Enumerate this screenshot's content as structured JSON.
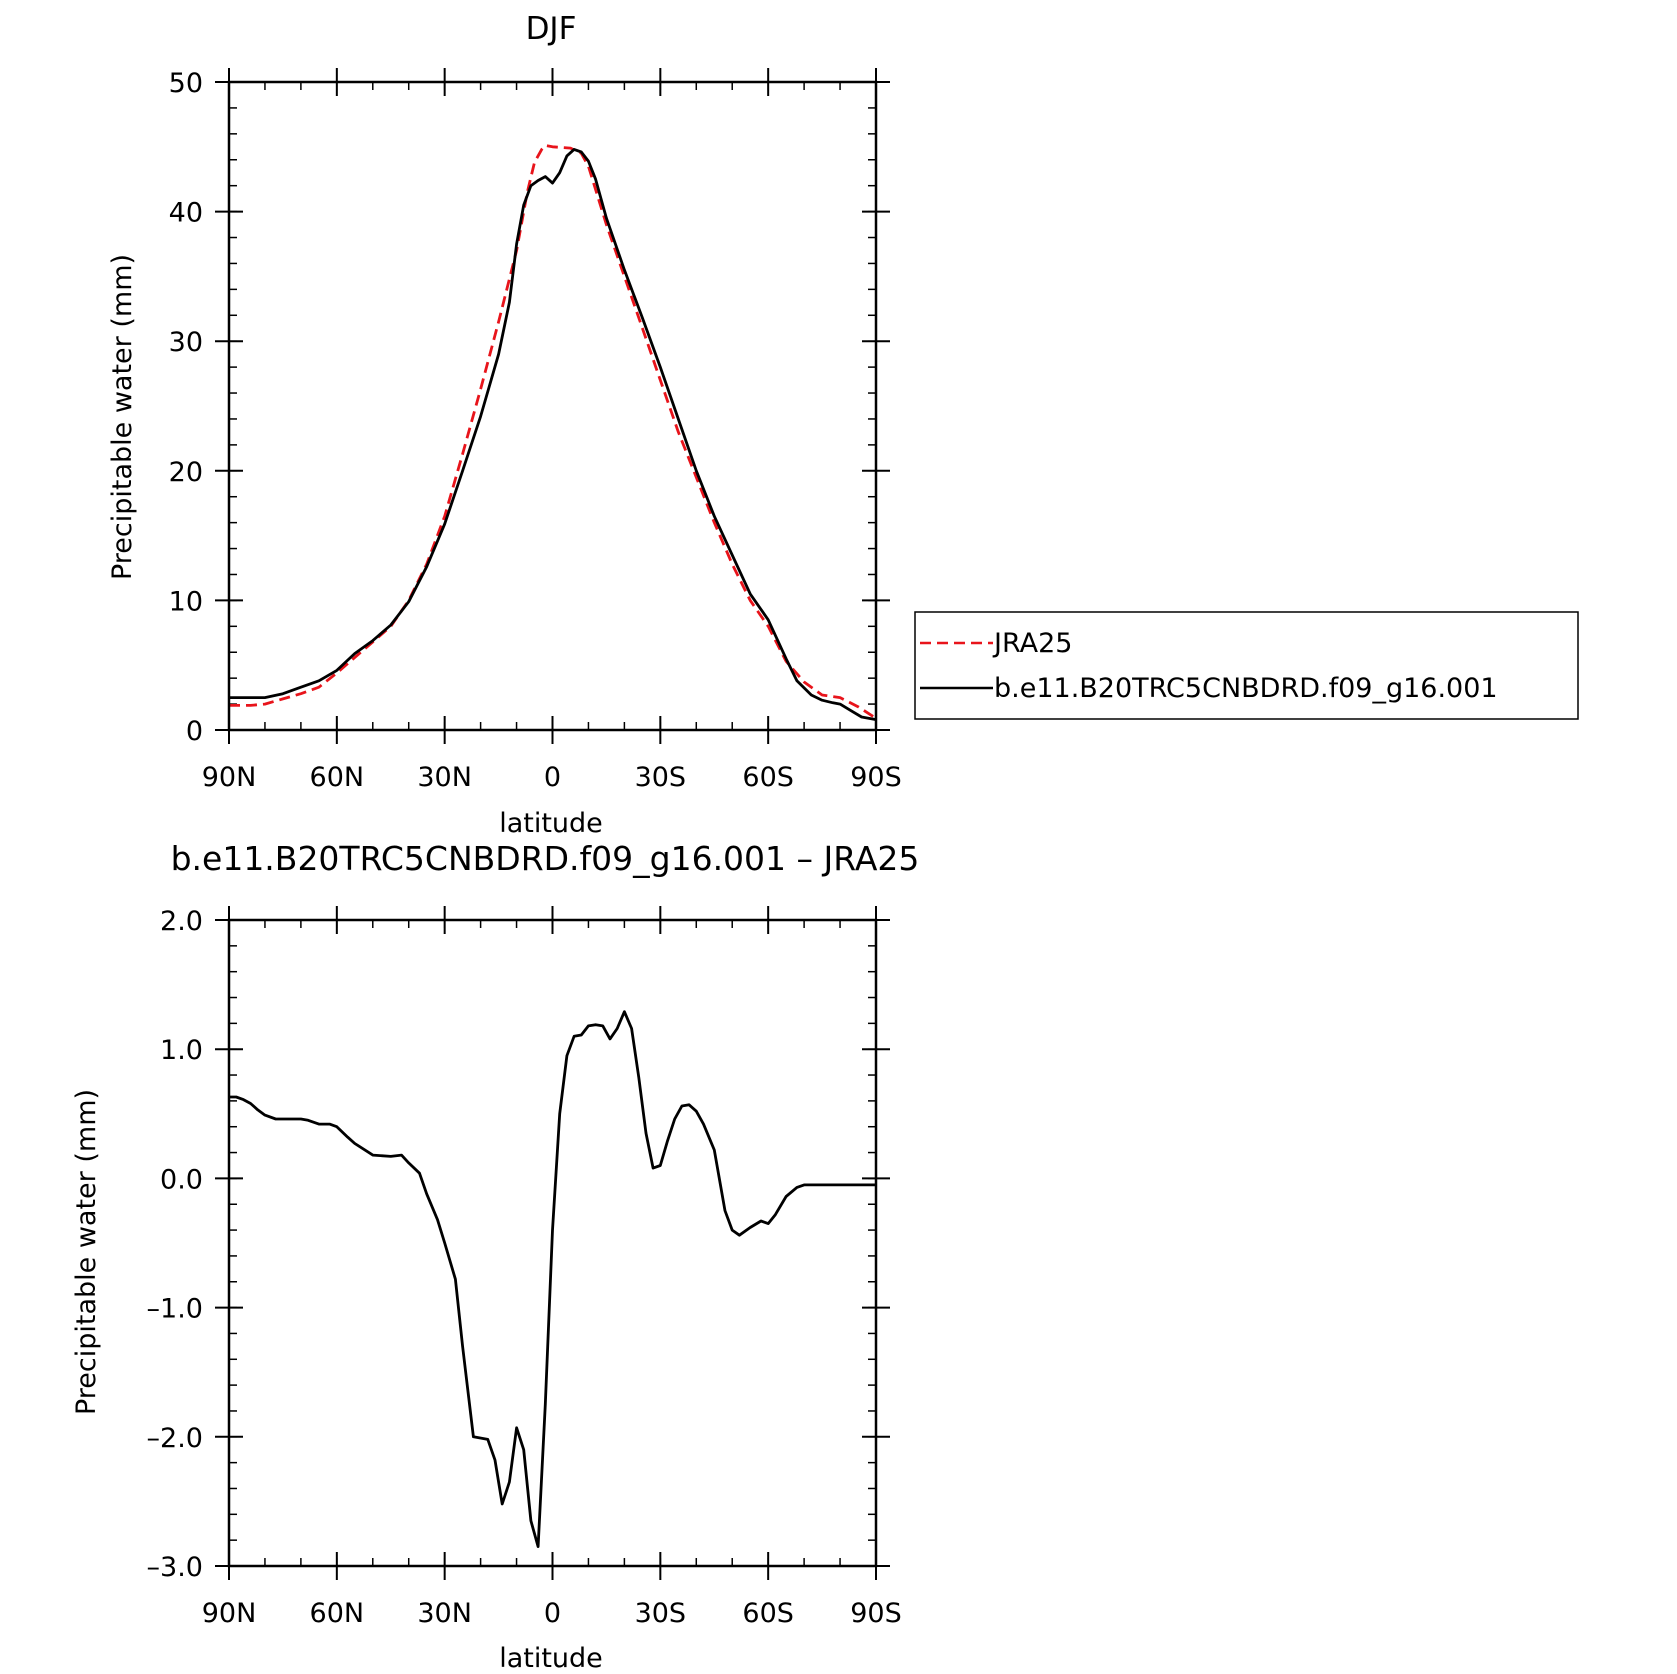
{
  "chart_data": [
    {
      "type": "line",
      "title": "DJF",
      "xlabel": "latitude",
      "ylabel": "Precipitable water (mm)",
      "xlim": [
        90,
        -90
      ],
      "ylim": [
        0,
        50
      ],
      "x_ticks": [
        {
          "value": 90,
          "label": "90N"
        },
        {
          "value": 60,
          "label": "60N"
        },
        {
          "value": 30,
          "label": "30N"
        },
        {
          "value": 0,
          "label": "0"
        },
        {
          "value": -30,
          "label": "30S"
        },
        {
          "value": -60,
          "label": "60S"
        },
        {
          "value": -90,
          "label": "90S"
        }
      ],
      "y_ticks": [
        {
          "value": 0,
          "label": "0"
        },
        {
          "value": 10,
          "label": "10"
        },
        {
          "value": 20,
          "label": "20"
        },
        {
          "value": 30,
          "label": "30"
        },
        {
          "value": 40,
          "label": "40"
        },
        {
          "value": 50,
          "label": "50"
        }
      ],
      "legend": {
        "placement": "right"
      },
      "series": [
        {
          "name": "JRA25",
          "color": "#e8141b",
          "dash": true,
          "x": [
            90,
            84,
            80,
            75,
            70,
            65,
            60,
            55,
            50,
            45,
            40,
            35,
            30,
            25,
            20,
            15,
            10,
            7,
            5,
            3,
            2,
            0,
            -5,
            -8,
            -10,
            -15,
            -20,
            -25,
            -30,
            -35,
            -40,
            -45,
            -50,
            -55,
            -60,
            -65,
            -70,
            -75,
            -80,
            -85,
            -90
          ],
          "values": [
            1.9,
            1.9,
            2.0,
            2.4,
            2.8,
            3.3,
            4.4,
            5.6,
            6.8,
            8.0,
            10.0,
            12.8,
            16.5,
            21.3,
            26.3,
            31.5,
            37.0,
            41.5,
            43.8,
            44.8,
            45.1,
            45.0,
            44.9,
            44.5,
            43.5,
            39.0,
            35.0,
            31.0,
            27.0,
            23.0,
            19.5,
            16.0,
            12.8,
            10.0,
            8.0,
            5.3,
            3.7,
            2.7,
            2.5,
            1.8,
            0.9
          ]
        },
        {
          "name": "b.e11.B20TRC5CNBDRD.f09_g16.001",
          "color": "#000000",
          "dash": false,
          "x": [
            90,
            85,
            80,
            75,
            70,
            65,
            60,
            55,
            50,
            45,
            40,
            35,
            30,
            25,
            20,
            15,
            12,
            10,
            8,
            6,
            4,
            2,
            0,
            -2,
            -4,
            -6,
            -8,
            -10,
            -12,
            -15,
            -20,
            -25,
            -30,
            -35,
            -40,
            -45,
            -50,
            -55,
            -60,
            -65,
            -68,
            -72,
            -75,
            -78,
            -80,
            -83,
            -86,
            -90
          ],
          "values": [
            2.5,
            2.5,
            2.5,
            2.8,
            3.3,
            3.8,
            4.6,
            5.9,
            6.9,
            8.1,
            9.9,
            12.6,
            15.9,
            20.0,
            24.2,
            29.0,
            33.0,
            37.5,
            40.5,
            42.0,
            42.4,
            42.7,
            42.2,
            43.0,
            44.3,
            44.8,
            44.6,
            43.9,
            42.5,
            39.5,
            35.5,
            31.8,
            28.0,
            24.0,
            20.0,
            16.5,
            13.5,
            10.5,
            8.5,
            5.5,
            3.8,
            2.7,
            2.3,
            2.1,
            2.0,
            1.5,
            1.0,
            0.8
          ]
        }
      ]
    },
    {
      "type": "line",
      "title": "b.e11.B20TRC5CNBDRD.f09_g16.001 – JRA25",
      "xlabel": "latitude",
      "ylabel": "Precipitable water (mm)",
      "xlim": [
        90,
        -90
      ],
      "ylim": [
        -3.0,
        2.0
      ],
      "x_ticks": [
        {
          "value": 90,
          "label": "90N"
        },
        {
          "value": 60,
          "label": "60N"
        },
        {
          "value": 30,
          "label": "30N"
        },
        {
          "value": 0,
          "label": "0"
        },
        {
          "value": -30,
          "label": "30S"
        },
        {
          "value": -60,
          "label": "60S"
        },
        {
          "value": -90,
          "label": "90S"
        }
      ],
      "y_ticks": [
        {
          "value": -3.0,
          "label": "–3.0"
        },
        {
          "value": -2.0,
          "label": "–2.0"
        },
        {
          "value": -1.0,
          "label": "–1.0"
        },
        {
          "value": 0.0,
          "label": "0.0"
        },
        {
          "value": 1.0,
          "label": "1.0"
        },
        {
          "value": 2.0,
          "label": "2.0"
        }
      ],
      "series": [
        {
          "color": "#000000",
          "dash": false,
          "x": [
            90,
            88,
            86,
            84,
            82,
            80,
            77,
            75,
            72,
            70,
            68,
            65,
            62,
            60,
            57,
            55,
            50,
            45,
            42,
            40,
            37,
            35,
            32,
            30,
            27,
            25,
            22,
            18,
            16,
            14,
            12,
            10,
            8,
            6,
            4,
            2,
            0,
            -2,
            -4,
            -6,
            -8,
            -10,
            -12,
            -14,
            -16,
            -18,
            -20,
            -22,
            -24,
            -26,
            -28,
            -30,
            -32,
            -34,
            -36,
            -38,
            -40,
            -42,
            -45,
            -48,
            -50,
            -52,
            -55,
            -58,
            -60,
            -62,
            -65,
            -68,
            -70,
            -72,
            -75,
            -78,
            -80,
            -82,
            -84,
            -86,
            -88,
            -90
          ],
          "values": [
            0.63,
            0.63,
            0.61,
            0.58,
            0.53,
            0.49,
            0.46,
            0.46,
            0.46,
            0.46,
            0.45,
            0.42,
            0.42,
            0.4,
            0.32,
            0.27,
            0.18,
            0.17,
            0.18,
            0.12,
            0.04,
            -0.12,
            -0.32,
            -0.5,
            -0.78,
            -1.3,
            -2.0,
            -2.02,
            -2.18,
            -2.52,
            -2.35,
            -1.93,
            -2.1,
            -2.65,
            -2.85,
            -1.75,
            -0.4,
            0.5,
            0.95,
            1.1,
            1.11,
            1.18,
            1.19,
            1.18,
            1.08,
            1.16,
            1.29,
            1.16,
            0.78,
            0.35,
            0.08,
            0.1,
            0.29,
            0.46,
            0.56,
            0.57,
            0.52,
            0.42,
            0.22,
            -0.25,
            -0.4,
            -0.44,
            -0.38,
            -0.33,
            -0.35,
            -0.28,
            -0.14,
            -0.07,
            -0.05,
            -0.05,
            -0.05,
            -0.05,
            -0.05,
            -0.05,
            -0.05,
            -0.05,
            -0.05,
            -0.05
          ]
        }
      ]
    }
  ]
}
